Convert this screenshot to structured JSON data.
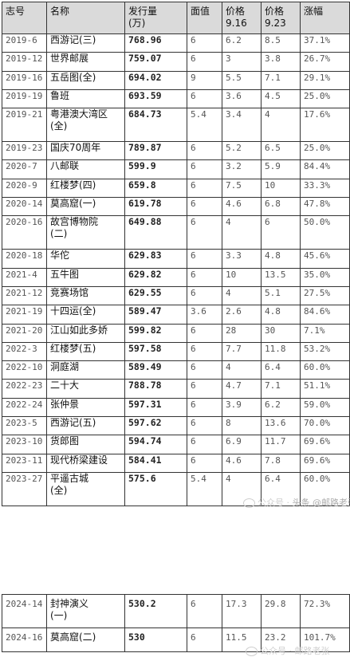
{
  "headers": [
    "志号",
    "名称",
    "发行量\n(万)",
    "面值",
    "价格\n9.16",
    "价格\n9.23",
    "涨幅"
  ],
  "rows": [
    [
      "2019-6",
      "西游记(三)",
      "768.96",
      "6",
      "6.2",
      "8.5",
      "37.1%"
    ],
    [
      "2019-12",
      "世界邮展",
      "759.07",
      "6",
      "3",
      "3.8",
      "26.7%"
    ],
    [
      "2019-16",
      "五岳图(全)",
      "694.02",
      "9",
      "5.5",
      "7.1",
      "29.1%"
    ],
    [
      "2019-19",
      "鲁班",
      "693.59",
      "6",
      "3.6",
      "4.5",
      "25.0%"
    ],
    [
      "2019-21",
      "粤港澳大湾区\n(全)",
      "684.73",
      "5.4",
      "3.4",
      "4",
      "17.6%"
    ],
    [
      "2019-23",
      "国庆70周年",
      "789.87",
      "6",
      "5.2",
      "6.5",
      "25.0%"
    ],
    [
      "2020-7",
      "八邮联",
      "599.9",
      "6",
      "3.2",
      "5.9",
      "84.4%"
    ],
    [
      "2020-9",
      "红楼梦(四)",
      "659.8",
      "6",
      "7.5",
      "10",
      "33.3%"
    ],
    [
      "2020-14",
      "莫高窟(一)",
      "619.78",
      "6",
      "4.6",
      "6.8",
      "47.8%"
    ],
    [
      "2020-16",
      "故宫博物院\n(二)",
      "649.88",
      "6",
      "4",
      "6",
      "50.0%"
    ],
    [
      "2020-18",
      "华佗",
      "629.83",
      "6",
      "3.3",
      "4.8",
      "45.6%"
    ],
    [
      "2021-4",
      "五牛图",
      "629.82",
      "6",
      "10",
      "13.5",
      "35.0%"
    ],
    [
      "2021-12",
      "竞赛场馆",
      "629.55",
      "6",
      "4",
      "5.1",
      "27.5%"
    ],
    [
      "2021-19",
      "十四运(全)",
      "589.47",
      "3.6",
      "2.6",
      "4.8",
      "84.6%"
    ],
    [
      "2021-20",
      "江山如此多娇",
      "599.82",
      "6",
      "28",
      "30",
      "7.1%"
    ],
    [
      "2022-3",
      "红楼梦(五)",
      "597.58",
      "6",
      "7.7",
      "11.8",
      "53.2%"
    ],
    [
      "2022-10",
      "洞庭湖",
      "589.49",
      "6",
      "4",
      "6.4",
      "60.0%"
    ],
    [
      "2022-23",
      "二十大",
      "788.78",
      "6",
      "4.7",
      "7.1",
      "51.1%"
    ],
    [
      "2022-24",
      "张仲景",
      "597.31",
      "6",
      "3.9",
      "6.2",
      "59.0%"
    ],
    [
      "2023-5",
      "西游记(五)",
      "597.62",
      "6",
      "8",
      "13.6",
      "70.0%"
    ],
    [
      "2023-10",
      "货郎图",
      "594.74",
      "6",
      "6.9",
      "11.7",
      "69.6%"
    ],
    [
      "2023-11",
      "现代桥梁建设",
      "584.41",
      "6",
      "4.6",
      "7.8",
      "69.6%"
    ],
    [
      "2023-27",
      "平遥古城\n(全)",
      "575.6",
      "5.4",
      "4",
      "6.4",
      "60.0%"
    ]
  ],
  "rows2": [
    [
      "2024-14",
      "封神演义\n(一)",
      "530.2",
      "6",
      "17.3",
      "29.8",
      "72.3%"
    ],
    [
      "2024-16",
      "莫高窟(二)",
      "530",
      "6",
      "11.5",
      "23.2",
      "101.7%"
    ]
  ],
  "watermark1": "公众号 · ",
  "credit1": "头条 @邮路老张",
  "watermark2": "公众号 · 邮路老张"
}
